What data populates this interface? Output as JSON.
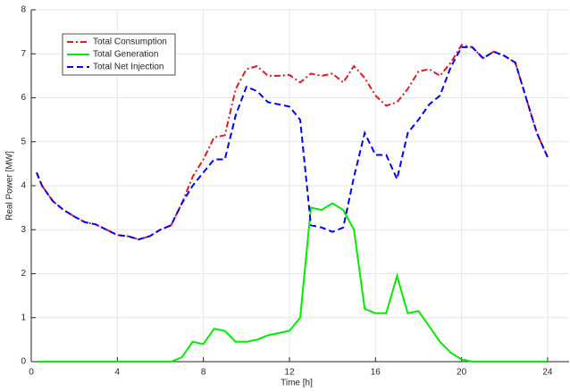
{
  "chart_data": {
    "type": "line",
    "x_label": "Time [h]",
    "y_label": "Real Power [MW]",
    "x": [
      0.25,
      0.5,
      1,
      1.5,
      2,
      2.5,
      3,
      3.5,
      4,
      4.5,
      5,
      5.5,
      6,
      6.5,
      7,
      7.5,
      8,
      8.5,
      9,
      9.5,
      10,
      10.5,
      11,
      11.5,
      12,
      12.5,
      13,
      13.5,
      14,
      14.5,
      15,
      15.5,
      16,
      16.5,
      17,
      17.5,
      18,
      18.5,
      19,
      19.5,
      20,
      20.5,
      21,
      21.5,
      22,
      22.5,
      23,
      23.5,
      24
    ],
    "series": [
      {
        "name": "Total Consumption",
        "color": "#e41a1c",
        "style": "dash-dot",
        "values": [
          4.3,
          4.0,
          3.65,
          3.45,
          3.3,
          3.17,
          3.12,
          3.0,
          2.88,
          2.85,
          2.78,
          2.85,
          3.0,
          3.1,
          3.6,
          4.2,
          4.6,
          5.1,
          5.15,
          6.2,
          6.65,
          6.72,
          6.5,
          6.5,
          6.52,
          6.35,
          6.55,
          6.5,
          6.55,
          6.35,
          6.72,
          6.45,
          6.05,
          5.82,
          5.9,
          6.2,
          6.6,
          6.65,
          6.5,
          6.8,
          7.2,
          7.15,
          6.9,
          7.05,
          6.95,
          6.8,
          6.0,
          5.2,
          4.65
        ]
      },
      {
        "name": "Total Generation",
        "color": "#00ee00",
        "style": "solid",
        "values": [
          0,
          0,
          0,
          0,
          0,
          0,
          0,
          0,
          0,
          0,
          0,
          0,
          0,
          0,
          0.1,
          0.45,
          0.4,
          0.75,
          0.7,
          0.45,
          0.45,
          0.5,
          0.6,
          0.65,
          0.7,
          1.0,
          3.5,
          3.45,
          3.6,
          3.45,
          3.0,
          1.2,
          1.1,
          1.1,
          1.95,
          1.1,
          1.15,
          0.8,
          0.45,
          0.2,
          0.05,
          0,
          0,
          0,
          0,
          0,
          0,
          0,
          0
        ]
      },
      {
        "name": "Total Net Injection",
        "color": "#0000ff",
        "style": "dash",
        "values": [
          4.3,
          4.0,
          3.65,
          3.45,
          3.3,
          3.17,
          3.12,
          3.0,
          2.88,
          2.85,
          2.78,
          2.85,
          3.0,
          3.1,
          3.6,
          4.0,
          4.3,
          4.6,
          4.6,
          5.6,
          6.25,
          6.15,
          5.9,
          5.85,
          5.8,
          5.5,
          3.1,
          3.05,
          2.95,
          3.05,
          4.2,
          5.2,
          4.7,
          4.7,
          4.15,
          5.2,
          5.5,
          5.85,
          6.05,
          6.7,
          7.15,
          7.15,
          6.9,
          7.05,
          6.95,
          6.8,
          6.0,
          5.2,
          4.65
        ]
      }
    ],
    "xlim": [
      0,
      25
    ],
    "xticks": [
      0,
      4,
      8,
      12,
      16,
      20,
      24
    ],
    "ylim": [
      0,
      8
    ],
    "yticks": [
      0,
      1,
      2,
      3,
      4,
      5,
      6,
      7,
      8
    ],
    "grid": true,
    "legend": "upper-left"
  }
}
